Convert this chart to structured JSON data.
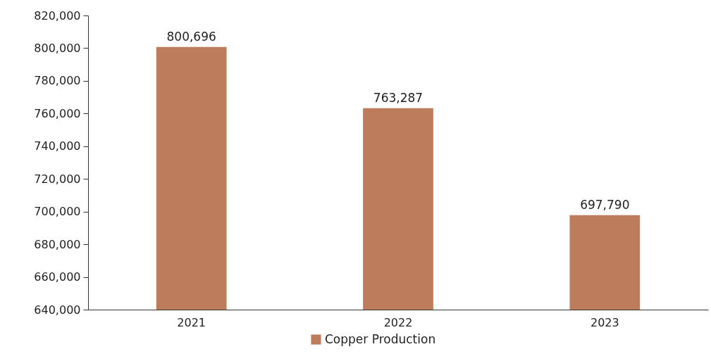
{
  "chart_data": {
    "type": "bar",
    "categories": [
      "2021",
      "2022",
      "2023"
    ],
    "series": [
      {
        "name": "Copper Production",
        "color": "#bd7c5b",
        "values": [
          800696,
          763287,
          697790
        ],
        "value_labels": [
          "800,696",
          "763,287",
          "697,790"
        ]
      }
    ],
    "ylim": [
      640000,
      820000
    ],
    "yticks": [
      {
        "value": 640000,
        "label": "640,000"
      },
      {
        "value": 660000,
        "label": "660,000"
      },
      {
        "value": 680000,
        "label": "680,000"
      },
      {
        "value": 700000,
        "label": "700,000"
      },
      {
        "value": 720000,
        "label": "720,000"
      },
      {
        "value": 740000,
        "label": "740,000"
      },
      {
        "value": 760000,
        "label": "760,000"
      },
      {
        "value": 780000,
        "label": "780,000"
      },
      {
        "value": 800000,
        "label": "800,000"
      },
      {
        "value": 820000,
        "label": "820,000"
      }
    ],
    "grid": false,
    "legend": "bottom"
  }
}
